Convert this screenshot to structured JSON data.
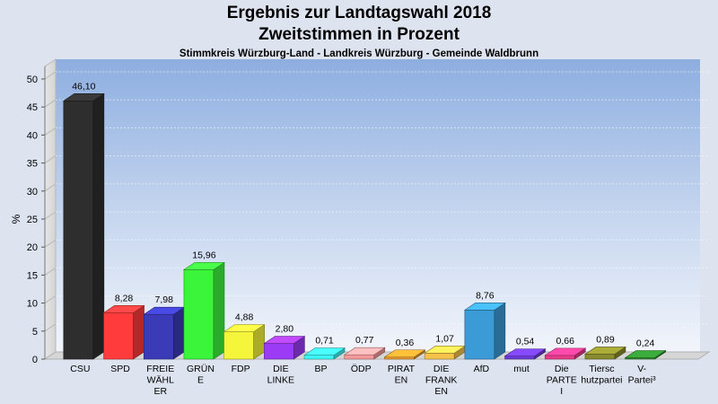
{
  "chart_data": {
    "type": "bar",
    "title": "Ergebnis zur Landtagswahl 2018",
    "subtitle": "Zweitstimmen in Prozent",
    "subtitle2": "Stimmkreis Würzburg-Land - Landkreis Würzburg - Gemeinde Waldbrunn",
    "ylabel": "%",
    "ylim": [
      0,
      50
    ],
    "yticks": [
      0,
      5,
      10,
      15,
      20,
      25,
      30,
      35,
      40,
      45,
      50
    ],
    "grid": true,
    "categories": [
      [
        "CSU"
      ],
      [
        "SPD"
      ],
      [
        "FREIE",
        "WÄHL",
        "ER"
      ],
      [
        "GRÜN",
        "E"
      ],
      [
        "FDP"
      ],
      [
        "DIE",
        "LINKE"
      ],
      [
        "BP"
      ],
      [
        "ÖDP"
      ],
      [
        "PIRAT",
        "EN"
      ],
      [
        "DIE",
        "FRANK",
        "EN"
      ],
      [
        "AfD"
      ],
      [
        "mut"
      ],
      [
        "Die",
        "PARTE",
        "I"
      ],
      [
        "Tiersc",
        "hutzpartei"
      ],
      [
        "V-",
        "Partei³"
      ]
    ],
    "values": [
      46.1,
      8.28,
      7.98,
      15.96,
      4.88,
      2.8,
      0.71,
      0.77,
      0.36,
      1.07,
      8.76,
      0.54,
      0.66,
      0.89,
      0.24
    ],
    "value_labels": [
      "46,10",
      "8,28",
      "7,98",
      "15,96",
      "4,88",
      "2,80",
      "0,71",
      "0,77",
      "0,36",
      "1,07",
      "8,76",
      "0,54",
      "0,66",
      "0,89",
      "0,24"
    ],
    "colors": [
      "#2e2e2e",
      "#ff3b3b",
      "#3b3bb8",
      "#3bf53b",
      "#f5f53b",
      "#9b3bf5",
      "#3bf5f5",
      "#f59a9a",
      "#e89a2e",
      "#f5c24a",
      "#3b9bd6",
      "#6b3bd6",
      "#e83b8a",
      "#8a8a2e",
      "#2e8a2e"
    ]
  }
}
